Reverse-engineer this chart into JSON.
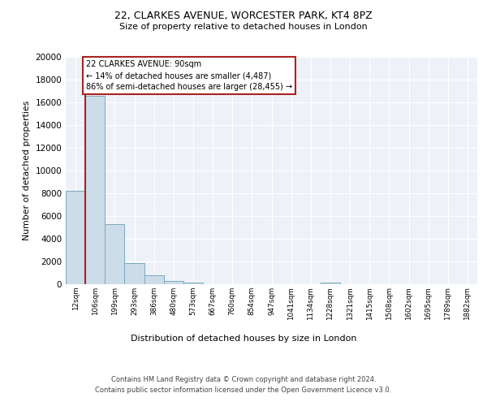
{
  "title1": "22, CLARKES AVENUE, WORCESTER PARK, KT4 8PZ",
  "title2": "Size of property relative to detached houses in London",
  "xlabel": "Distribution of detached houses by size in London",
  "ylabel": "Number of detached properties",
  "bin_labels": [
    "12sqm",
    "106sqm",
    "199sqm",
    "293sqm",
    "386sqm",
    "480sqm",
    "573sqm",
    "667sqm",
    "760sqm",
    "854sqm",
    "947sqm",
    "1041sqm",
    "1134sqm",
    "1228sqm",
    "1321sqm",
    "1415sqm",
    "1508sqm",
    "1602sqm",
    "1695sqm",
    "1789sqm",
    "1882sqm"
  ],
  "bar_heights": [
    8200,
    16600,
    5300,
    1850,
    800,
    280,
    160,
    0,
    0,
    0,
    0,
    0,
    0,
    120,
    0,
    0,
    0,
    0,
    0,
    0,
    0
  ],
  "bar_color": "#ccdce8",
  "bar_edge_color": "#7aaabf",
  "vline_color": "#aa2222",
  "annotation_title": "22 CLARKES AVENUE: 90sqm",
  "annotation_line1": "← 14% of detached houses are smaller (4,487)",
  "annotation_line2": "86% of semi-detached houses are larger (28,455) →",
  "annotation_box_color": "#ffffff",
  "annotation_box_edge": "#aa2222",
  "ylim": [
    0,
    20000
  ],
  "yticks": [
    0,
    2000,
    4000,
    6000,
    8000,
    10000,
    12000,
    14000,
    16000,
    18000,
    20000
  ],
  "background_color": "#eef2f8",
  "footer1": "Contains HM Land Registry data © Crown copyright and database right 2024.",
  "footer2": "Contains public sector information licensed under the Open Government Licence v3.0."
}
